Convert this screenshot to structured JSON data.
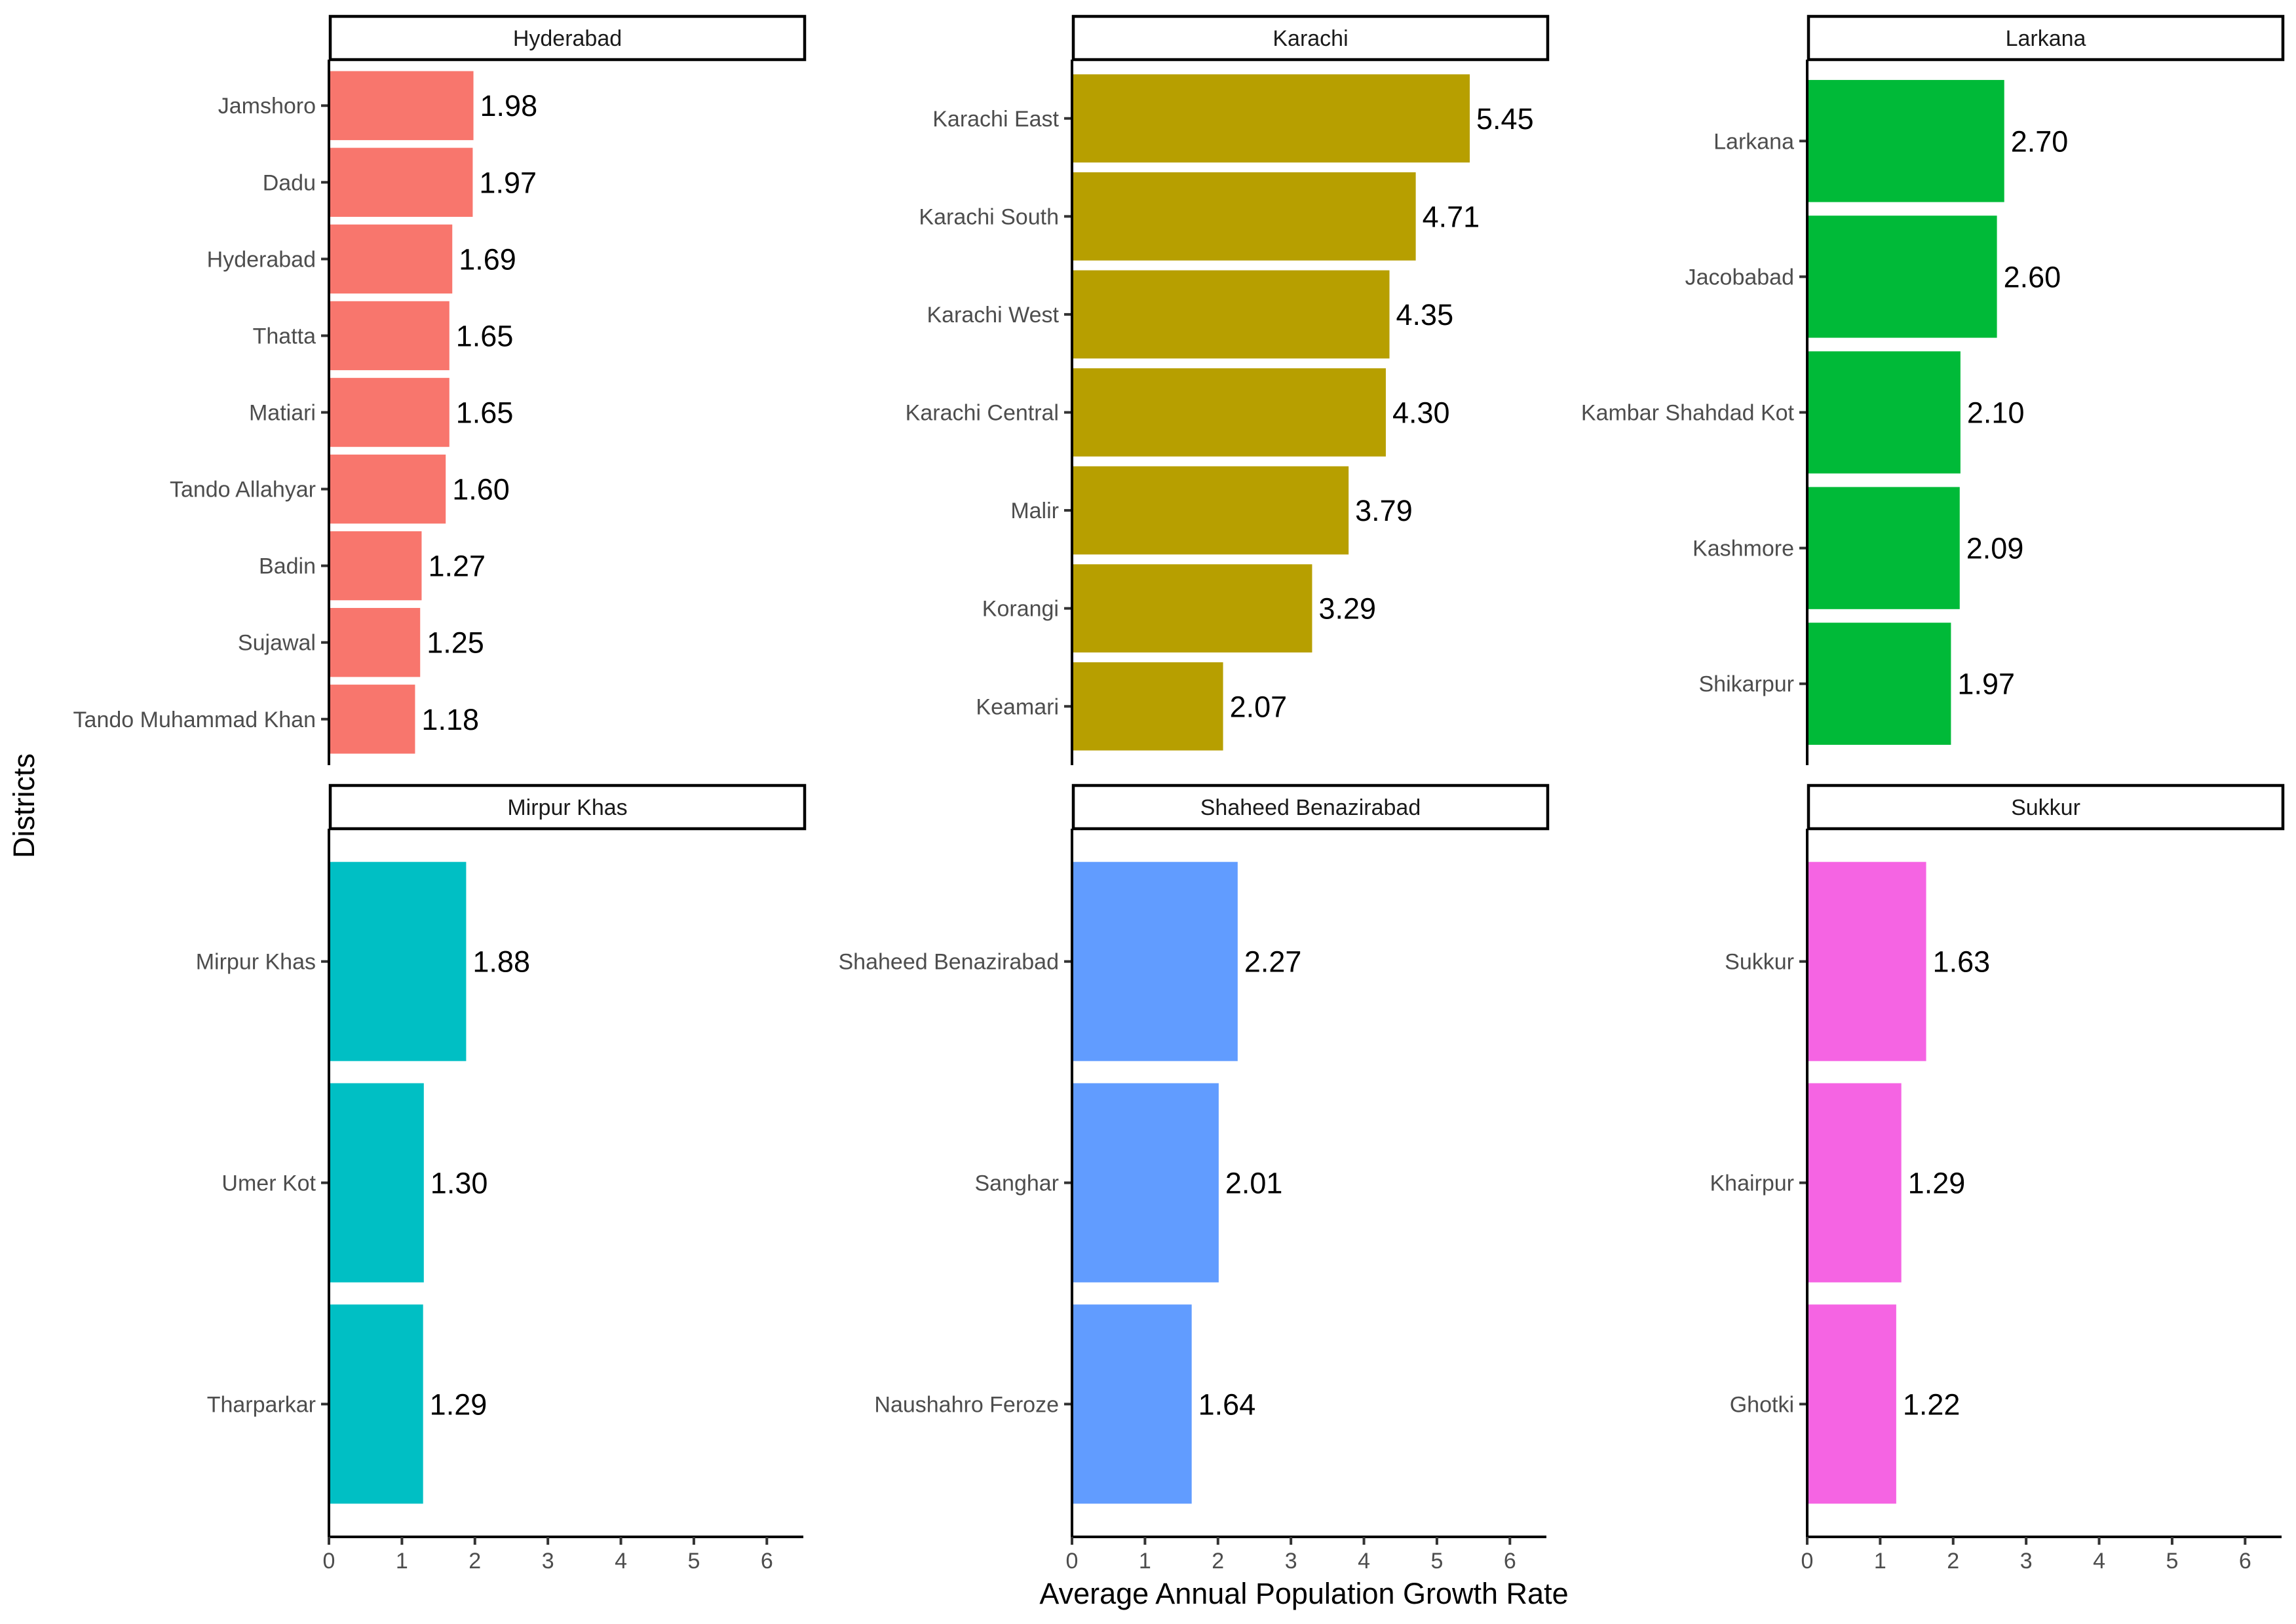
{
  "chart_data": {
    "type": "bar",
    "orientation": "horizontal",
    "facet_layout": "2x3",
    "xlabel": "Average Annual Population Growth Rate",
    "ylabel": "Districts",
    "xlim": [
      0,
      6.5
    ],
    "x_ticks": [
      "0",
      "1",
      "2",
      "3",
      "4",
      "5",
      "6"
    ],
    "grid": false,
    "legend": "none",
    "panels": [
      {
        "name": "Hyderabad",
        "color": "#F8766D",
        "categories": [
          "Jamshoro",
          "Dadu",
          "Hyderabad",
          "Thatta",
          "Matiari",
          "Tando Allahyar",
          "Badin",
          "Sujawal",
          "Tando Muhammad Khan"
        ],
        "values": [
          1.98,
          1.97,
          1.69,
          1.65,
          1.65,
          1.6,
          1.27,
          1.25,
          1.18
        ],
        "labels": [
          "1.98",
          "1.97",
          "1.69",
          "1.65",
          "1.65",
          "1.60",
          "1.27",
          "1.25",
          "1.18"
        ]
      },
      {
        "name": "Karachi",
        "color": "#B79F00",
        "categories": [
          "Karachi East",
          "Karachi South",
          "Karachi West",
          "Karachi Central",
          "Malir",
          "Korangi",
          "Keamari"
        ],
        "values": [
          5.45,
          4.71,
          4.35,
          4.3,
          3.79,
          3.29,
          2.07
        ],
        "labels": [
          "5.45",
          "4.71",
          "4.35",
          "4.30",
          "3.79",
          "3.29",
          "2.07"
        ]
      },
      {
        "name": "Larkana",
        "color": "#00BA38",
        "categories": [
          "Larkana",
          "Jacobabad",
          "Kambar Shahdad Kot",
          "Kashmore",
          "Shikarpur"
        ],
        "values": [
          2.7,
          2.6,
          2.1,
          2.09,
          1.97
        ],
        "labels": [
          "2.70",
          "2.60",
          "2.10",
          "2.09",
          "1.97"
        ]
      },
      {
        "name": "Mirpur Khas",
        "color": "#00BFC4",
        "categories": [
          "Mirpur Khas",
          "Umer Kot",
          "Tharparkar"
        ],
        "values": [
          1.88,
          1.3,
          1.29
        ],
        "labels": [
          "1.88",
          "1.30",
          "1.29"
        ]
      },
      {
        "name": "Shaheed Benazirabad",
        "color": "#619CFF",
        "categories": [
          "Shaheed Benazirabad",
          "Sanghar",
          "Naushahro Feroze"
        ],
        "values": [
          2.27,
          2.01,
          1.64
        ],
        "labels": [
          "2.27",
          "2.01",
          "1.64"
        ]
      },
      {
        "name": "Sukkur",
        "color": "#F564E3",
        "categories": [
          "Sukkur",
          "Khairpur",
          "Ghotki"
        ],
        "values": [
          1.63,
          1.29,
          1.22
        ],
        "labels": [
          "1.63",
          "1.29",
          "1.22"
        ]
      }
    ]
  }
}
